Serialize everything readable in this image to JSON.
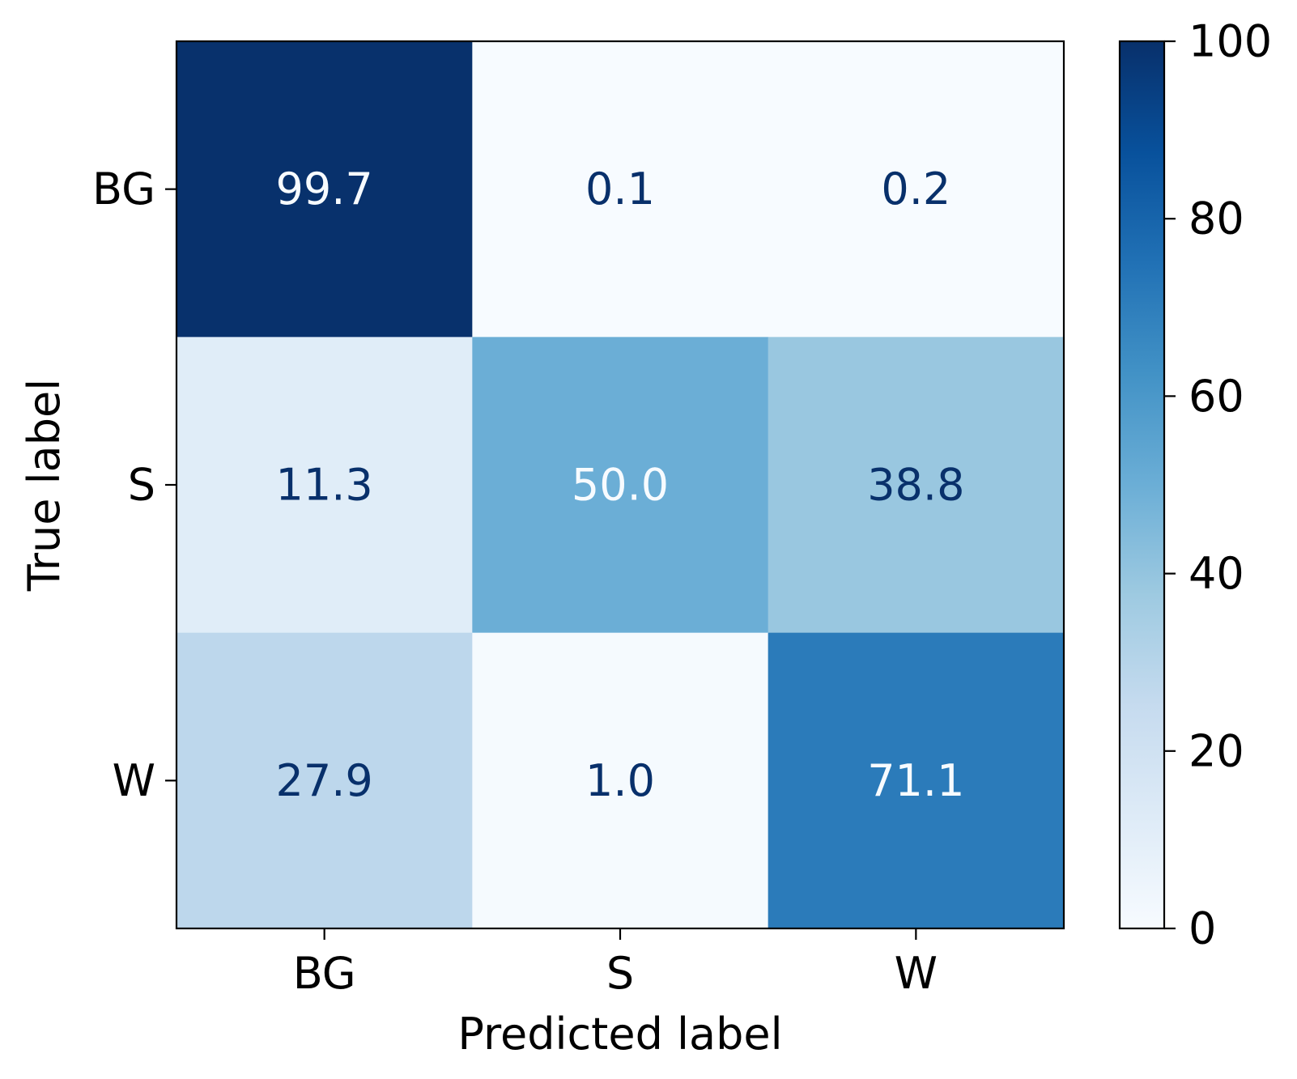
{
  "chart_data": {
    "type": "heatmap",
    "xlabel": "Predicted label",
    "ylabel": "True label",
    "x_categories": [
      "BG",
      "S",
      "W"
    ],
    "y_categories": [
      "BG",
      "S",
      "W"
    ],
    "values": [
      [
        99.7,
        0.1,
        0.2
      ],
      [
        11.3,
        50.0,
        38.8
      ],
      [
        27.9,
        1.0,
        71.1
      ]
    ],
    "cell_labels": [
      [
        "99.7",
        "0.1",
        "0.2"
      ],
      [
        "11.3",
        "50.0",
        "38.8"
      ],
      [
        "27.9",
        "1.0",
        "71.1"
      ]
    ],
    "colormap": "Blues",
    "colorbar": {
      "range": [
        0,
        100
      ],
      "ticks": [
        0,
        20,
        40,
        60,
        80,
        100
      ],
      "tick_labels": [
        "0",
        "20",
        "40",
        "60",
        "80",
        "100"
      ]
    },
    "colors": {
      "colormap_stops": [
        "#f7fbff",
        "#deebf7",
        "#c6dbef",
        "#9ecae1",
        "#6baed6",
        "#4292c6",
        "#2171b5",
        "#08519c",
        "#08306b"
      ],
      "dark_text": "#08306b",
      "light_text": "#f7fbff"
    }
  }
}
